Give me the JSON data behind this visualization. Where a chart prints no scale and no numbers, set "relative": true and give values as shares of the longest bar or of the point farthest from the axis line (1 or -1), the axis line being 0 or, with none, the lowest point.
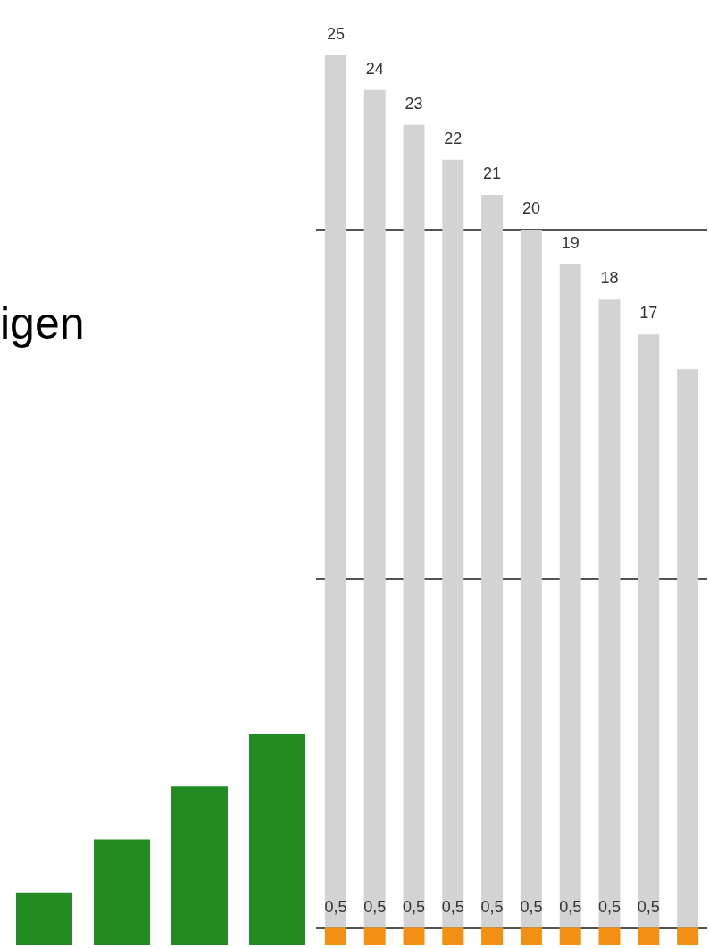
{
  "chart_data": [
    {
      "type": "bar",
      "title": "igen",
      "categories": [
        null,
        null,
        null,
        null
      ],
      "values": [
        0.25,
        0.5,
        0.75,
        1
      ],
      "color": "#228b22",
      "relative": true,
      "tick_labels": false
    },
    {
      "type": "bar",
      "categories": [
        null,
        null,
        null,
        null,
        null,
        null,
        null,
        null,
        null,
        null
      ],
      "stacked": true,
      "series": [
        {
          "color": "#f39014",
          "values": [
            0.5,
            0.5,
            0.5,
            0.5,
            0.5,
            0.5,
            0.5,
            0.5,
            0.5,
            0.5
          ],
          "value_labels": [
            "0,5",
            "0,5",
            "0,5",
            "0,5",
            "0,5",
            "0,5",
            "0,5",
            "0,5",
            "0,5",
            null
          ]
        },
        {
          "color": "#d3d3d3",
          "values": [
            25,
            24,
            23,
            22,
            21,
            20,
            19,
            18,
            17,
            16
          ],
          "value_labels": [
            "25",
            "24",
            "23",
            "22",
            "21",
            "20",
            "19",
            "18",
            "17",
            null
          ]
        }
      ],
      "ylim": [
        0,
        27
      ],
      "yticks": [
        {
          "value": 0.5,
          "label": null
        },
        {
          "value": 10.5,
          "label": null
        },
        {
          "value": 20.5,
          "label": null
        }
      ],
      "grid": "y",
      "tick_labels": false
    }
  ]
}
